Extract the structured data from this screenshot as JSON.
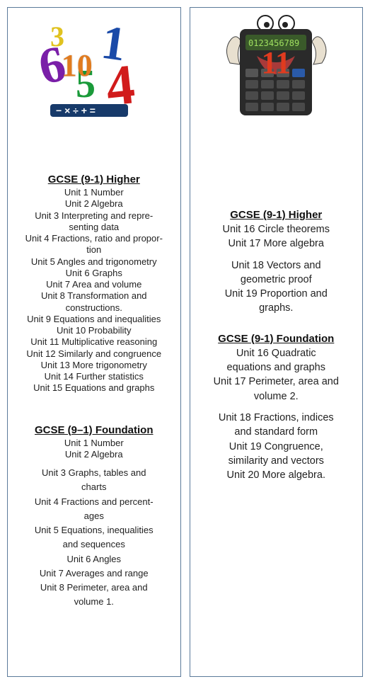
{
  "left": {
    "overlay": "10",
    "higher_title": "GCSE (9-1) Higher",
    "higher_units": [
      "Unit 1 Number",
      "Unit 2 Algebra",
      "Unit 3 Interpreting and repre-",
      "senting data",
      "Unit 4 Fractions, ratio and propor-",
      "tion",
      "Unit 5 Angles and trigonometry",
      "Unit 6 Graphs",
      "Unit 7 Area and volume",
      "Unit 8 Transformation and",
      "constructions.",
      "Unit 9 Equations and inequalities",
      "Unit 10 Probability",
      "Unit 11 Multiplicative reasoning",
      "Unit 12 Similarly and congruence",
      "Unit 13 More trigonometry",
      "Unit 14 Further statistics",
      "Unit 15 Equations and graphs"
    ],
    "foundation_title": "GCSE (9–1) Foundation",
    "foundation_units_a": [
      "Unit 1 Number",
      "Unit 2 Algebra"
    ],
    "foundation_units_b": [
      "Unit 3 Graphs, tables and",
      "charts",
      "Unit 4 Fractions and percent-",
      "ages",
      "Unit 5 Equations, inequalities",
      "and sequences",
      "Unit 6 Angles",
      "Unit 7 Averages and range",
      "Unit 8 Perimeter, area and",
      "volume 1."
    ]
  },
  "right": {
    "overlay": "11",
    "higher_title": "GCSE (9-1) Higher",
    "higher_units_a": [
      "Unit 16 Circle theorems",
      "Unit 17 More algebra"
    ],
    "higher_units_b": [
      "Unit 18 Vectors and",
      "geometric proof",
      "Unit 19 Proportion and",
      "graphs."
    ],
    "foundation_title": "GCSE (9-1) Foundation",
    "foundation_units_a": [
      "Unit 16 Quadratic",
      "equations and graphs",
      "Unit 17 Perimeter, area and",
      "volume 2."
    ],
    "foundation_units_b": [
      "Unit 18 Fractions, indices",
      "and standard form",
      "Unit 19 Congruence,",
      "similarity and vectors",
      "Unit 20 More algebra."
    ]
  },
  "colors": {
    "border": "#5b7a9a",
    "text": "#222222",
    "num10": "#e07b1f",
    "num11": "#e03b1f"
  }
}
